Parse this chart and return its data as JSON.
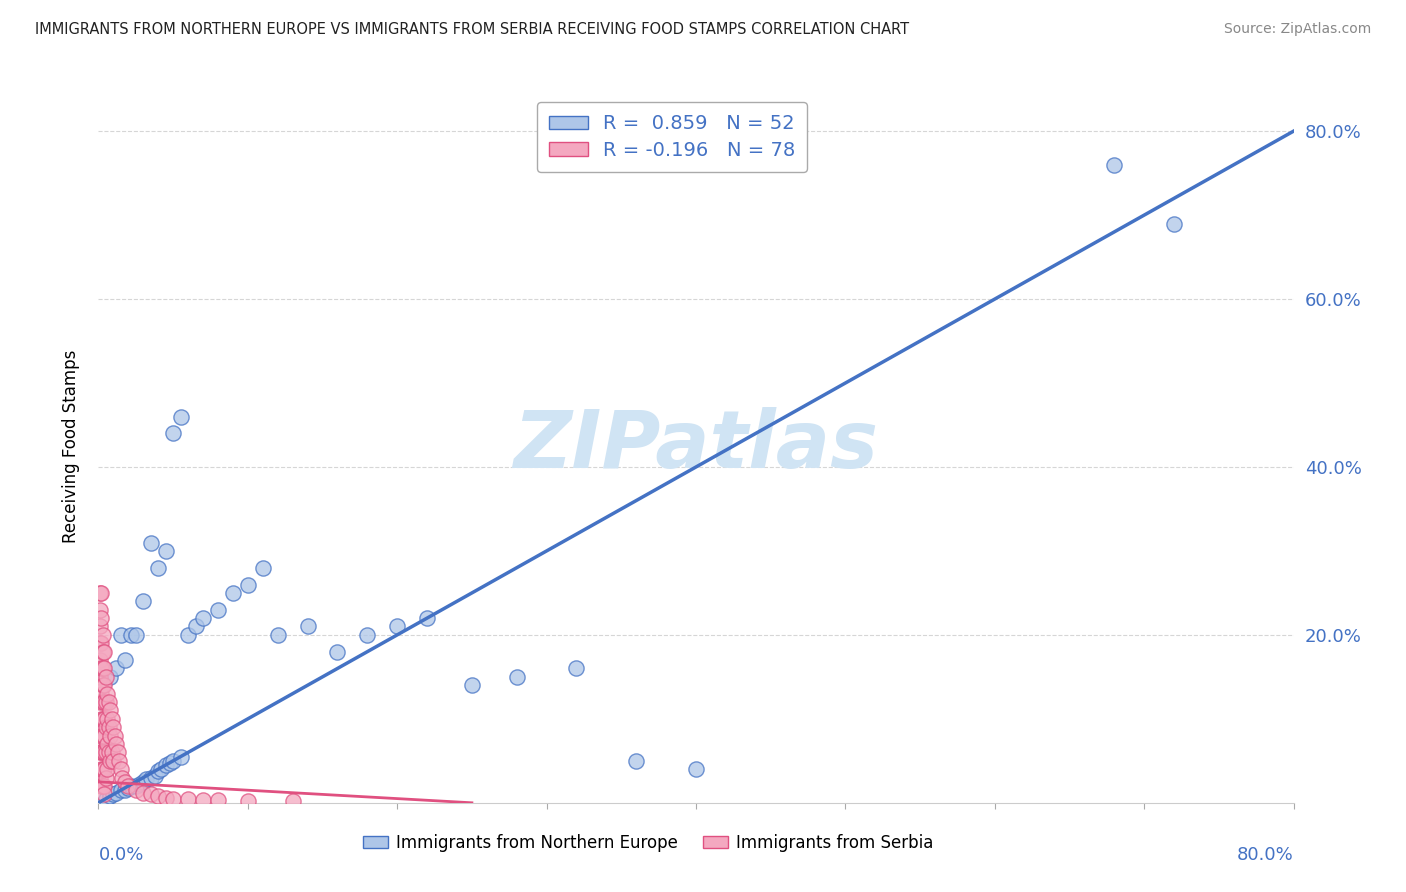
{
  "title": "IMMIGRANTS FROM NORTHERN EUROPE VS IMMIGRANTS FROM SERBIA RECEIVING FOOD STAMPS CORRELATION CHART",
  "source": "Source: ZipAtlas.com",
  "ylabel": "Receiving Food Stamps",
  "ytick_labels": [
    "20.0%",
    "40.0%",
    "60.0%",
    "80.0%"
  ],
  "ytick_values": [
    0.2,
    0.4,
    0.6,
    0.8
  ],
  "legend_bottom": [
    "Immigrants from Northern Europe",
    "Immigrants from Serbia"
  ],
  "blue_color": "#aec6e8",
  "blue_edge_color": "#4472c4",
  "pink_color": "#f4a8c0",
  "pink_edge_color": "#e05080",
  "line_blue_color": "#4472c4",
  "line_pink_color": "#e05080",
  "watermark_color": "#d0e4f4",
  "watermark_text": "ZIPatlas",
  "title_color": "#222222",
  "source_color": "#888888",
  "tick_color": "#4472c4",
  "grid_color": "#cccccc",
  "xlim": [
    0.0,
    0.8
  ],
  "ylim": [
    0.0,
    0.85
  ],
  "blue_r": 0.859,
  "blue_n": 52,
  "pink_r": -0.196,
  "pink_n": 78,
  "blue_line_x": [
    0.0,
    0.8
  ],
  "blue_line_y": [
    0.0,
    0.8
  ],
  "pink_line_x": [
    0.0,
    0.25
  ],
  "pink_line_y": [
    0.025,
    0.0
  ],
  "blue_pts_x": [
    0.005,
    0.008,
    0.01,
    0.012,
    0.015,
    0.018,
    0.02,
    0.022,
    0.025,
    0.028,
    0.03,
    0.032,
    0.035,
    0.038,
    0.04,
    0.042,
    0.045,
    0.048,
    0.05,
    0.055,
    0.008,
    0.012,
    0.015,
    0.018,
    0.022,
    0.025,
    0.03,
    0.035,
    0.04,
    0.045,
    0.05,
    0.055,
    0.06,
    0.065,
    0.07,
    0.08,
    0.09,
    0.1,
    0.11,
    0.12,
    0.14,
    0.16,
    0.18,
    0.2,
    0.22,
    0.25,
    0.28,
    0.32,
    0.36,
    0.4,
    0.68,
    0.72
  ],
  "blue_pts_y": [
    0.005,
    0.008,
    0.01,
    0.012,
    0.015,
    0.015,
    0.018,
    0.02,
    0.02,
    0.022,
    0.025,
    0.028,
    0.03,
    0.032,
    0.038,
    0.04,
    0.045,
    0.048,
    0.05,
    0.055,
    0.15,
    0.16,
    0.2,
    0.17,
    0.2,
    0.2,
    0.24,
    0.31,
    0.28,
    0.3,
    0.44,
    0.46,
    0.2,
    0.21,
    0.22,
    0.23,
    0.25,
    0.26,
    0.28,
    0.2,
    0.21,
    0.18,
    0.2,
    0.21,
    0.22,
    0.14,
    0.15,
    0.16,
    0.05,
    0.04,
    0.76,
    0.69
  ],
  "pink_pts_x": [
    0.001,
    0.001,
    0.001,
    0.001,
    0.001,
    0.001,
    0.001,
    0.001,
    0.001,
    0.001,
    0.002,
    0.002,
    0.002,
    0.002,
    0.002,
    0.002,
    0.002,
    0.002,
    0.002,
    0.002,
    0.003,
    0.003,
    0.003,
    0.003,
    0.003,
    0.003,
    0.003,
    0.003,
    0.003,
    0.003,
    0.004,
    0.004,
    0.004,
    0.004,
    0.004,
    0.004,
    0.004,
    0.004,
    0.004,
    0.004,
    0.005,
    0.005,
    0.005,
    0.005,
    0.005,
    0.006,
    0.006,
    0.006,
    0.006,
    0.007,
    0.007,
    0.007,
    0.008,
    0.008,
    0.008,
    0.009,
    0.009,
    0.01,
    0.01,
    0.011,
    0.012,
    0.013,
    0.014,
    0.015,
    0.016,
    0.018,
    0.02,
    0.025,
    0.03,
    0.035,
    0.04,
    0.045,
    0.05,
    0.06,
    0.07,
    0.08,
    0.1,
    0.13
  ],
  "pink_pts_y": [
    0.25,
    0.23,
    0.21,
    0.19,
    0.17,
    0.15,
    0.12,
    0.09,
    0.06,
    0.03,
    0.25,
    0.22,
    0.19,
    0.16,
    0.13,
    0.1,
    0.08,
    0.06,
    0.04,
    0.02,
    0.2,
    0.18,
    0.16,
    0.14,
    0.12,
    0.1,
    0.08,
    0.06,
    0.04,
    0.02,
    0.18,
    0.16,
    0.14,
    0.12,
    0.1,
    0.08,
    0.06,
    0.04,
    0.02,
    0.01,
    0.15,
    0.12,
    0.09,
    0.06,
    0.03,
    0.13,
    0.1,
    0.07,
    0.04,
    0.12,
    0.09,
    0.06,
    0.11,
    0.08,
    0.05,
    0.1,
    0.06,
    0.09,
    0.05,
    0.08,
    0.07,
    0.06,
    0.05,
    0.04,
    0.03,
    0.025,
    0.02,
    0.015,
    0.012,
    0.01,
    0.008,
    0.006,
    0.005,
    0.004,
    0.003,
    0.003,
    0.002,
    0.002
  ]
}
